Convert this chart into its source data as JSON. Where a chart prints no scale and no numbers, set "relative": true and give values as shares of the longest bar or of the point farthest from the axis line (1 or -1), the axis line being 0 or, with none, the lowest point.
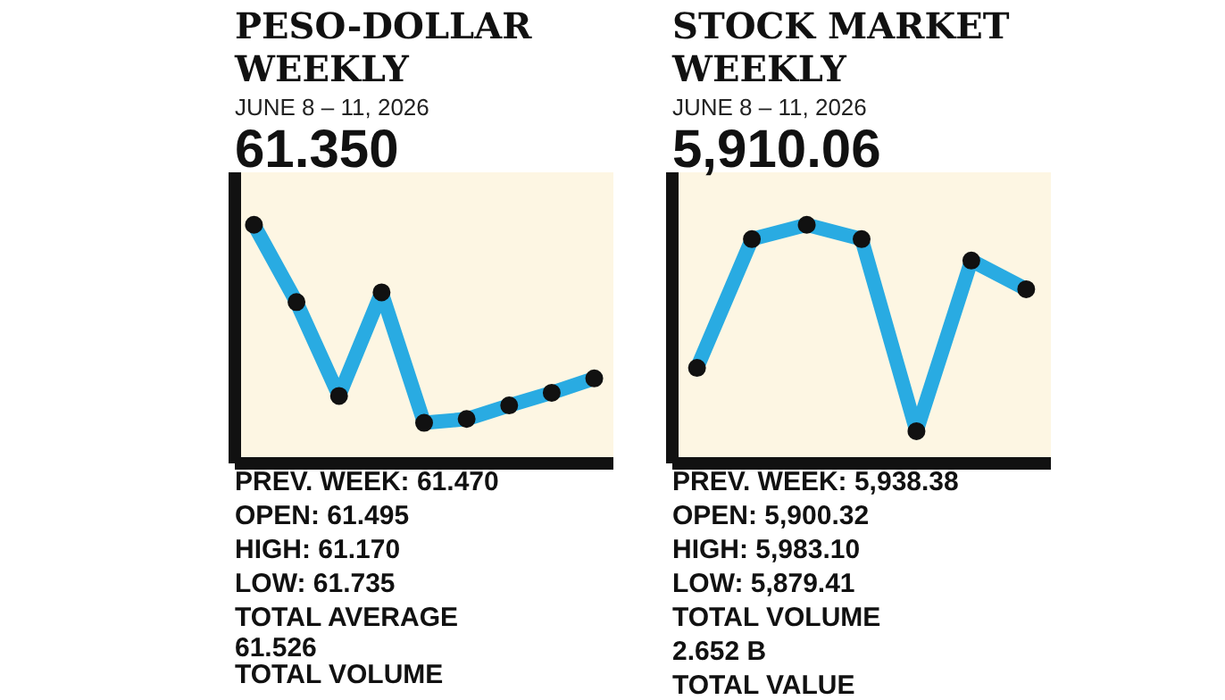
{
  "chart_data": [
    {
      "type": "line",
      "relative": true,
      "title": "PESO-DOLLAR WEEKLY",
      "subtitle": "JUNE 8 – 11, 2026",
      "categories": [
        null,
        null,
        null,
        null,
        null,
        null,
        null,
        null,
        null
      ],
      "series": [
        {
          "color": "#29abe2",
          "values": [
            1,
            0.676,
            0.283,
            0.717,
            0.17,
            0.186,
            0.243,
            0.296,
            0.356
          ]
        }
      ],
      "marker": "circle",
      "line_style": "solid",
      "annotations": [
        "61.350",
        "PREV. WEEK: 61.470",
        "OPEN: 61.495",
        "HIGH:  61.170",
        "LOW:  61.735",
        "TOTAL AVERAGE",
        "61.526",
        "TOTAL VOLUME"
      ]
    },
    {
      "type": "line",
      "relative": true,
      "title": "STOCK MARKET WEEKLY",
      "subtitle": "JUNE 8 – 11, 2026",
      "categories": [
        null,
        null,
        null,
        null,
        null,
        null,
        null
      ],
      "series": [
        {
          "color": "#29abe2",
          "values": [
            0.4,
            0.94,
            1,
            0.94,
            0.135,
            0.85,
            0.73
          ]
        }
      ],
      "marker": "circle",
      "line_style": "solid",
      "annotations": [
        "5,910.06",
        "PREV. WEEK: 5,938.38",
        "OPEN: 5,900.32",
        "HIGH:  5,983.10",
        "LOW:  5,879.41",
        "TOTAL VOLUME",
        "2.652 B",
        "TOTAL VALUE"
      ]
    }
  ]
}
